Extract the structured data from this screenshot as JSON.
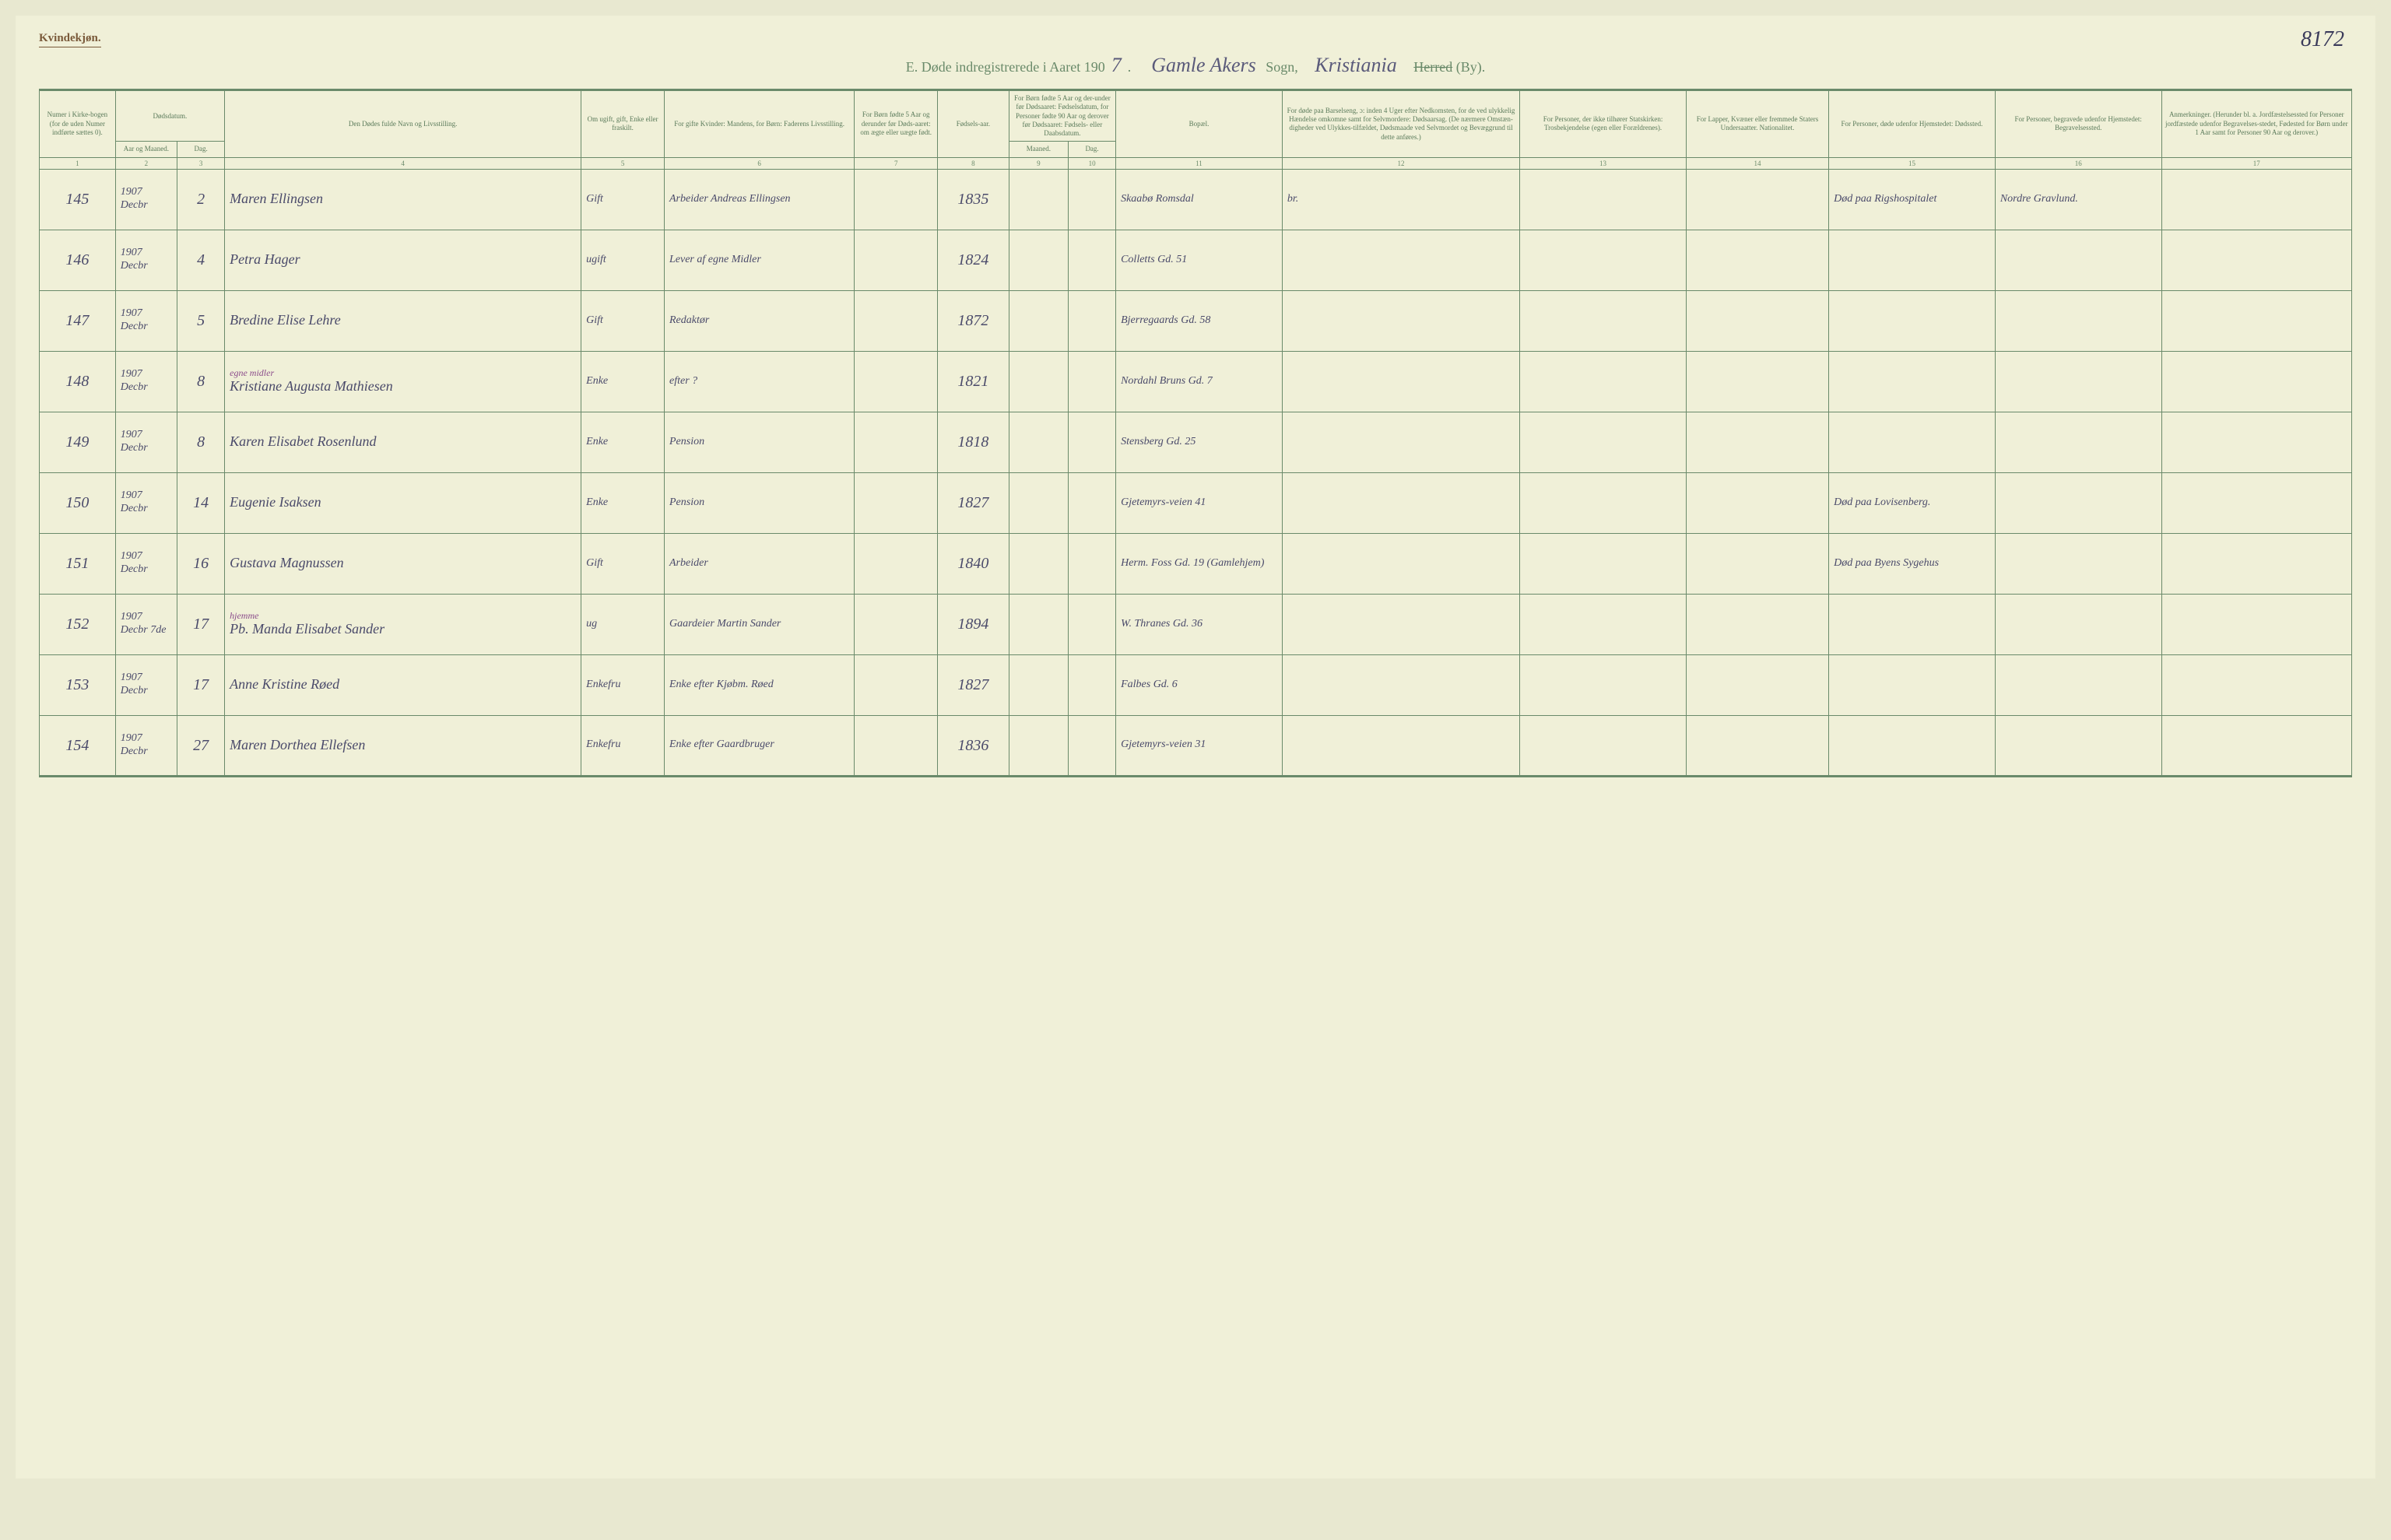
{
  "meta": {
    "gender_label": "Kvindekjøn.",
    "page_number": "8172",
    "title_prefix": "E.  Døde indregistrerede i Aaret 190",
    "year_suffix": "7",
    "sogn_written": "Gamle Akers",
    "sogn_label": "Sogn,",
    "herred_written": "Kristiania",
    "herred_struck": "Herred",
    "by_label": "(By)."
  },
  "columns": {
    "c1": "Numer i Kirke-bogen (for de uden Numer indførte sættes 0).",
    "c2": "Dødsdatum.",
    "c2a": "Aar og Maaned.",
    "c2b": "Dag.",
    "c4": "Den Dødes fulde Navn og Livsstilling.",
    "c5": "Om ugift, gift, Enke eller fraskilt.",
    "c6": "For gifte Kvinder: Mandens, for Børn: Faderens Livsstilling.",
    "c7": "For Børn fødte 5 Aar og derunder før Døds-aaret: om ægte eller uægte født.",
    "c8": "Fødsels-aar.",
    "c9_10": "For Børn fødte 5 Aar og der-under før Dødsaaret: Fødselsdatum, for Personer fødte 90 Aar og derover før Dødsaaret: Fødsels- eller Daabsdatum.",
    "c9": "Maaned.",
    "c10": "Dag.",
    "c11": "Bopæl.",
    "c12": "For døde paa Barselseng, ɔ: inden 4 Uger efter Nedkomsten, for de ved ulykkelig Hændelse omkomne samt for Selvmordere: Dødsaarsag. (De nærmere Omstæn-digheder ved Ulykkes-tilfældet, Dødsmaade ved Selvmordet og Bevæggrund til dette anføres.)",
    "c13": "For Personer, der ikke tilhører Statskirken: Trosbekjendelse (egen eller Forældrenes).",
    "c14": "For Lapper, Kvæner eller fremmede Staters Undersaatter. Nationalitet.",
    "c15": "For Personer, døde udenfor Hjemstedet: Dødssted.",
    "c16": "For Personer, begravede udenfor Hjemstedet: Begravelsessted.",
    "c17": "Anmerkninger. (Herunder bl. a. Jordfæstelsessted for Personer jordfæstede udenfor Begravelses-stedet, Fødested for Børn under 1 Aar samt for Personer 90 Aar og derover.)"
  },
  "colnums": [
    "1",
    "2",
    "3",
    "4",
    "5",
    "6",
    "7",
    "8",
    "9",
    "10",
    "11",
    "12",
    "13",
    "14",
    "15",
    "16",
    "17"
  ],
  "rows": [
    {
      "num": "145",
      "year": "1907",
      "mon": "Decbr",
      "day": "2",
      "name": "Maren Ellingsen",
      "status": "Gift",
      "spouse": "Arbeider Andreas Ellingsen",
      "birth": "1835",
      "residence": "Skaabø Romsdal",
      "cause": "br.",
      "deathplace": "Død paa Rigshospitalet",
      "burial": "Nordre Gravlund."
    },
    {
      "num": "146",
      "year": "1907",
      "mon": "Decbr",
      "day": "4",
      "name": "Petra Hager",
      "status": "ugift",
      "spouse": "Lever af egne Midler",
      "birth": "1824",
      "residence": "Colletts Gd. 51"
    },
    {
      "num": "147",
      "year": "1907",
      "mon": "Decbr",
      "day": "5",
      "name": "Bredine Elise Lehre",
      "status": "Gift",
      "spouse": "Redaktør",
      "birth": "1872",
      "residence": "Bjerregaards Gd. 58"
    },
    {
      "num": "148",
      "year": "1907",
      "mon": "Decbr",
      "day": "8",
      "name": "Kristiane Augusta Mathiesen",
      "name_note": "egne midler",
      "status": "Enke",
      "spouse": "efter  ?",
      "birth": "1821",
      "residence": "Nordahl Bruns Gd. 7"
    },
    {
      "num": "149",
      "year": "1907",
      "mon": "Decbr",
      "day": "8",
      "name": "Karen Elisabet Rosenlund",
      "status": "Enke",
      "spouse": "Pension",
      "birth": "1818",
      "residence": "Stensberg Gd. 25"
    },
    {
      "num": "150",
      "year": "1907",
      "mon": "Decbr",
      "day": "14",
      "name": "Eugenie Isaksen",
      "status": "Enke",
      "spouse": "Pension",
      "birth": "1827",
      "residence": "Gjetemyrs-veien 41",
      "deathplace": "Død paa Lovisenberg."
    },
    {
      "num": "151",
      "year": "1907",
      "mon": "Decbr",
      "day": "16",
      "name": "Gustava Magnussen",
      "status": "Gift",
      "spouse": "Arbeider",
      "birth": "1840",
      "residence": "Herm. Foss Gd. 19 (Gamlehjem)",
      "deathplace": "Død paa Byens Sygehus"
    },
    {
      "num": "152",
      "year": "1907",
      "mon": "Decbr 7de",
      "day": "17",
      "name": "Pb. Manda Elisabet Sander",
      "name_note": "hjemme",
      "status": "ug",
      "spouse": "Gaardeier Martin Sander",
      "birth": "1894",
      "residence": "W. Thranes Gd. 36"
    },
    {
      "num": "153",
      "year": "1907",
      "mon": "Decbr",
      "day": "17",
      "name": "Anne Kristine Røed",
      "status": "Enkefru",
      "spouse": "Enke efter Kjøbm. Røed",
      "birth": "1827",
      "residence": "Falbes Gd. 6"
    },
    {
      "num": "154",
      "year": "1907",
      "mon": "Decbr",
      "day": "27",
      "name": "Maren Dorthea Ellefsen",
      "status": "Enkefru",
      "spouse": "Enke efter Gaardbruger",
      "birth": "1836",
      "residence": "Gjetemyrs-veien 31"
    }
  ],
  "style": {
    "page_bg": "#f0f0d8",
    "rule_color": "#6a8a6a",
    "printed_text": "#5a7a5a",
    "handwriting": "#4a4a6a",
    "purple_note": "#8a4a8a"
  }
}
